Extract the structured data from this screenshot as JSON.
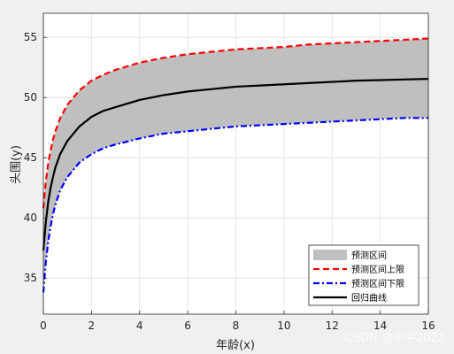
{
  "chart_data": {
    "type": "line",
    "title": "",
    "xlabel": "年龄(x)",
    "ylabel": "头围(y)",
    "xlim": [
      0,
      16
    ],
    "ylim": [
      32,
      57
    ],
    "xticks": [
      0,
      2,
      4,
      6,
      8,
      10,
      12,
      14,
      16
    ],
    "yticks": [
      35,
      40,
      45,
      50,
      55
    ],
    "grid": true,
    "legend_position": "bottom-right",
    "x": [
      0,
      0.1,
      0.2,
      0.3,
      0.4,
      0.5,
      0.7,
      1,
      1.5,
      2,
      2.5,
      3,
      4,
      5,
      6,
      7,
      8,
      9,
      10,
      11,
      12,
      13,
      14,
      15,
      16
    ],
    "series": [
      {
        "name": "预测区间",
        "kind": "band",
        "color": "#bfbfbf",
        "lower_series": "预测区间下限",
        "upper_series": "预测区间上限"
      },
      {
        "name": "预测区间上限",
        "kind": "line",
        "style": "dashed",
        "color": "#ff0000",
        "values": [
          40.8,
          43.0,
          44.5,
          45.6,
          46.5,
          47.2,
          48.3,
          49.4,
          50.6,
          51.4,
          51.9,
          52.3,
          52.9,
          53.3,
          53.6,
          53.8,
          54.0,
          54.1,
          54.2,
          54.4,
          54.5,
          54.6,
          54.7,
          54.8,
          54.9
        ]
      },
      {
        "name": "预测区间下限",
        "kind": "line",
        "style": "dash-dot",
        "color": "#0000ff",
        "values": [
          33.8,
          36.3,
          38.0,
          39.3,
          40.3,
          41.1,
          42.3,
          43.4,
          44.6,
          45.3,
          45.8,
          46.1,
          46.6,
          47.0,
          47.2,
          47.4,
          47.6,
          47.7,
          47.8,
          47.9,
          48.0,
          48.1,
          48.2,
          48.3,
          48.3
        ]
      },
      {
        "name": "回归曲线",
        "kind": "line",
        "style": "solid",
        "color": "#000000",
        "values": [
          37.3,
          39.6,
          41.3,
          42.5,
          43.4,
          44.2,
          45.3,
          46.4,
          47.6,
          48.4,
          48.9,
          49.2,
          49.8,
          50.2,
          50.5,
          50.7,
          50.9,
          51.0,
          51.1,
          51.2,
          51.3,
          51.4,
          51.45,
          51.5,
          51.55
        ]
      }
    ]
  },
  "watermark": "CSDN @小宇2022"
}
